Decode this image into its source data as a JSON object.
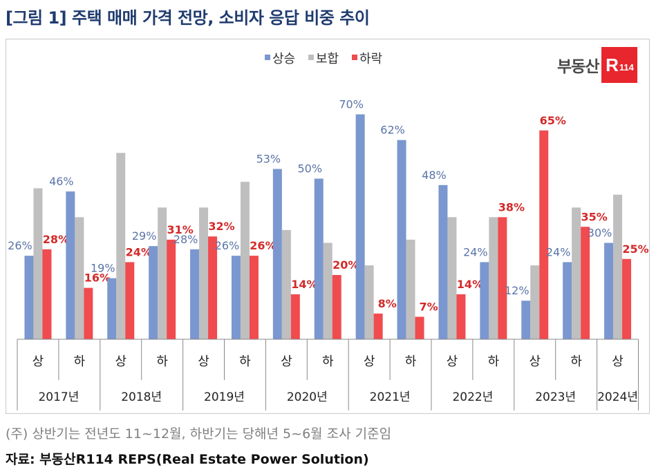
{
  "header": {
    "title": "[그림 1] 주택 매매 가격 전망, 소비자 응답 비중 추이"
  },
  "logo": {
    "text": "부동산",
    "box_letter": "R",
    "box_number": "114"
  },
  "footer": {
    "note": "(주) 상반기는 전년도 11~12월, 하반기는 당해년 5~6월 조사 기준임",
    "source": "자료: 부동산R114 REPS(Real Estate Power Solution)"
  },
  "chart_data": {
    "type": "bar",
    "title": "",
    "legend_position": "top-center",
    "categories": [
      "상",
      "하",
      "상",
      "하",
      "상",
      "하",
      "상",
      "하",
      "상",
      "하",
      "상",
      "하",
      "상",
      "하",
      "상"
    ],
    "groups": [
      {
        "label": "2017년",
        "span": 2
      },
      {
        "label": "2018년",
        "span": 2
      },
      {
        "label": "2019년",
        "span": 2
      },
      {
        "label": "2020년",
        "span": 2
      },
      {
        "label": "2021년",
        "span": 2
      },
      {
        "label": "2022년",
        "span": 2
      },
      {
        "label": "2023년",
        "span": 2
      },
      {
        "label": "2024년",
        "span": 1
      }
    ],
    "series": [
      {
        "name": "상승",
        "color": "#7a97cf",
        "label_color": "#5a74a8",
        "values": [
          26,
          46,
          19,
          29,
          28,
          26,
          53,
          50,
          70,
          62,
          48,
          24,
          12,
          24,
          30
        ],
        "labeled": true
      },
      {
        "name": "보합",
        "color": "#bfbfbf",
        "label_color": "#808080",
        "values": [
          47,
          38,
          58,
          41,
          41,
          49,
          34,
          30,
          23,
          31,
          38,
          38,
          23,
          41,
          45
        ],
        "labeled": false
      },
      {
        "name": "하락",
        "color": "#f04b4f",
        "label_color": "#d42a2a",
        "values": [
          28,
          16,
          24,
          31,
          32,
          26,
          14,
          20,
          8,
          7,
          14,
          38,
          65,
          35,
          25
        ],
        "labeled": true
      }
    ],
    "value_suffix": "%",
    "ylim": [
      0,
      70
    ],
    "grid": false
  }
}
